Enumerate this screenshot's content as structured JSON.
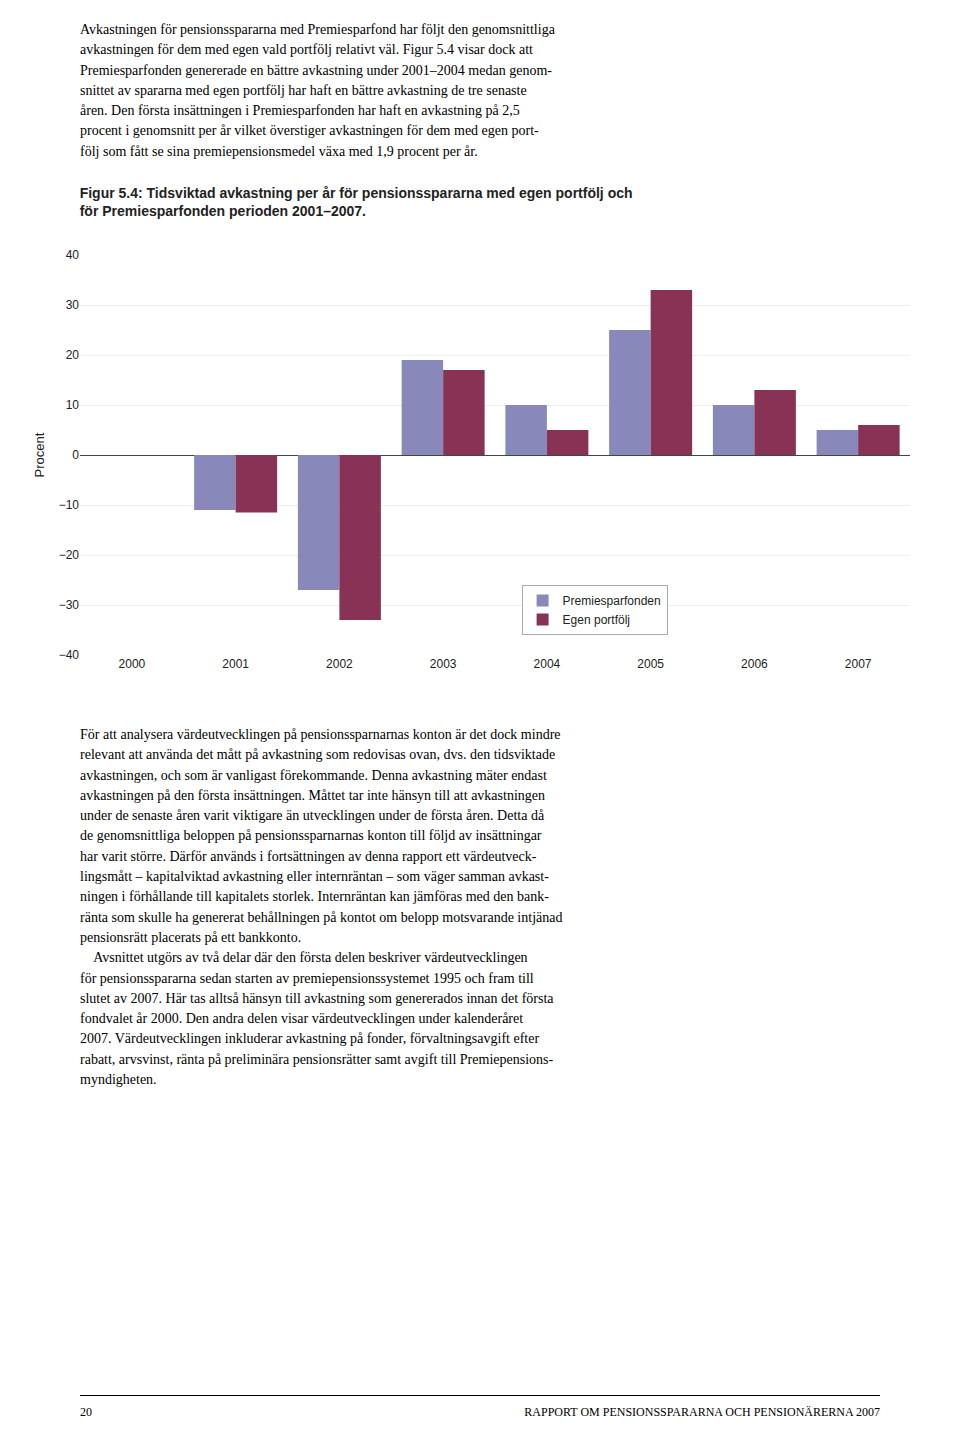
{
  "chart_data": {
    "type": "bar",
    "title": "Figur 5.4: Tidsviktad avkastning per år för pensionsspararna med egen portfölj och\nför Premiesparfonden perioden 2001–2007.",
    "ylabel": "Procent",
    "categories": [
      "2000",
      "2001",
      "2002",
      "2003",
      "2004",
      "2005",
      "2006",
      "2007"
    ],
    "series": [
      {
        "name": "Premiesparfonden",
        "color": "#8888bb",
        "values": [
          0,
          -11,
          -27,
          19,
          10,
          25,
          10,
          5
        ]
      },
      {
        "name": "Egen portfölj",
        "color": "#883355",
        "values": [
          0,
          -11.5,
          -33,
          17,
          5,
          33,
          13,
          6
        ]
      }
    ],
    "ylim": [
      -40,
      40
    ],
    "yticks": [
      -40,
      -30,
      -20,
      -10,
      0,
      10,
      20,
      30,
      40
    ],
    "grid": true,
    "legend": "lower center",
    "annotations": [
      "Avkastningen för pensionsspararna med Premiesparfond har följt den genomsnittliga\navkastningen för dem med egen vald portfölj relativt väl. Figur 5.4 visar dock att\nPremiesparfonden genererade en bättre avkastning under 2001–2004 medan genom-\nsnittet av spararna med egen portfölj har haft en bättre avkastning de tre senaste\nåren. Den första insättningen i Premiesparfonden har haft en avkastning på 2,5\nprocent i genomsnitt per år vilket överstiger avkastningen för dem med egen port-\nfölj som fått se sina premiepensionsmedel växa med 1,9 procent per år.",
      "För att analysera värdeutvecklingen på pensionssparnarnas konton är det dock mindre\nrelevant att använda det mått på avkastning som redovisas ovan, dvs. den tidsviktade\navkastningen, och som är vanligast förekommande. Denna avkastning mäter endast\navkastningen på den första insättningen. Måttet tar inte hänsyn till att avkastningen\nunder de senaste åren varit viktigare än utvecklingen under de första åren. Detta då\nde genomsnittliga beloppen på pensionssparnarnas konton till följd av insättningar\nhar varit större. Därför används i fortsättningen av denna rapport ett värdeutveck-\nlingsmått – kapitalviktad avkastning eller internräntan – som väger samman avkast-\nningen i förhållande till kapitalets storlek. Internräntan kan jämföras med den bank-\nränta som skulle ha genererat behållningen på kontot om belopp motsvarande intjänad\npensionsrätt placerats på ett bankkonto.\n    Avsnittet utgörs av två delar där den första delen beskriver värdeutvecklingen\nför pensionsspararna sedan starten av premiepensionssystemet 1995 och fram till\nslutet av 2007. Här tas alltså hänsyn till avkastning som genererados innan det första\nfondvalet år 2000. Den andra delen visar värdeutvecklingen under kalenderåret\n2007. Värdeutvecklingen inkluderar avkastning på fonder, förvaltningsavgift efter\nrabatt, arvsvinst, ränta på preliminära pensionsrätter samt avgift till Premiepensions-\nmyndigheten.",
      "20",
      "RAPPORT OM PENSIONSSPARARNA OCH PENSIONÄRERNA 2007"
    ]
  }
}
